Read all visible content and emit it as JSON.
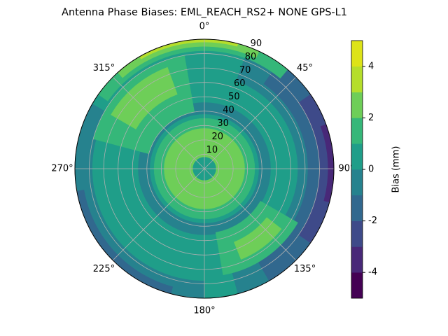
{
  "chart_data": {
    "type": "polar_contour",
    "title": "Antenna Phase Biases: EML_REACH_RS2+  NONE GPS-L1",
    "colorbar_label": "Bias (mm)",
    "rlim": [
      0,
      90
    ],
    "rticks": [
      10,
      20,
      30,
      40,
      50,
      60,
      70,
      80,
      90
    ],
    "thetaticks": [
      {
        "value": 0,
        "label": "0°"
      },
      {
        "value": 45,
        "label": "45°"
      },
      {
        "value": 90,
        "label": "90°"
      },
      {
        "value": 135,
        "label": "135°"
      },
      {
        "value": 180,
        "label": "180°"
      },
      {
        "value": 225,
        "label": "225°"
      },
      {
        "value": 270,
        "label": "270°"
      },
      {
        "value": 315,
        "label": "315°"
      }
    ],
    "grid": true,
    "clim": [
      -5,
      5
    ],
    "cticks": [
      -4,
      -2,
      0,
      2,
      4
    ],
    "levels": [
      -5,
      -4,
      -3,
      -2,
      -1,
      0,
      1,
      2,
      3,
      4,
      5
    ],
    "colors": [
      "#440154",
      "#482878",
      "#3e4a89",
      "#31688e",
      "#26828e",
      "#1f9e89",
      "#35b779",
      "#6ece58",
      "#b5de2b",
      "#dde318"
    ],
    "regions": [
      {
        "range": [
          0,
          1
        ],
        "zen": [
          0,
          90
        ],
        "az": [
          0,
          360
        ]
      },
      {
        "range": [
          -1,
          0
        ],
        "zen": [
          38,
          46
        ],
        "az": [
          0,
          360
        ]
      },
      {
        "range": [
          -1,
          0
        ],
        "zen": [
          78,
          90
        ],
        "az": [
          180,
          300
        ]
      },
      {
        "range": [
          -2,
          -1
        ],
        "zen": [
          85,
          90
        ],
        "az": [
          195,
          260
        ]
      },
      {
        "range": [
          -1,
          0
        ],
        "zen": [
          65,
          90
        ],
        "az": [
          20,
          165
        ]
      },
      {
        "range": [
          -2,
          -1
        ],
        "zen": [
          72,
          90
        ],
        "az": [
          35,
          150
        ]
      },
      {
        "range": [
          -3,
          -2
        ],
        "zen": [
          80,
          90
        ],
        "az": [
          55,
          125
        ]
      },
      {
        "range": [
          -4,
          -3
        ],
        "zen": [
          86,
          90
        ],
        "az": [
          70,
          105
        ]
      },
      {
        "range": [
          1,
          2
        ],
        "zen": [
          40,
          80
        ],
        "az": [
          285,
          350
        ]
      },
      {
        "range": [
          2,
          3
        ],
        "zen": [
          55,
          75
        ],
        "az": [
          300,
          340
        ]
      },
      {
        "range": [
          1,
          2
        ],
        "zen": [
          82,
          90
        ],
        "az": [
          305,
          400
        ]
      },
      {
        "range": [
          2,
          3
        ],
        "zen": [
          85,
          90
        ],
        "az": [
          318,
          385
        ]
      },
      {
        "range": [
          3,
          4
        ],
        "zen": [
          88,
          90
        ],
        "az": [
          330,
          375
        ]
      },
      {
        "range": [
          1,
          2
        ],
        "zen": [
          45,
          75
        ],
        "az": [
          120,
          170
        ]
      },
      {
        "range": [
          2,
          3
        ],
        "zen": [
          55,
          68
        ],
        "az": [
          128,
          158
        ]
      },
      {
        "range": [
          1,
          2
        ],
        "zen": [
          0,
          35
        ],
        "az": [
          0,
          360
        ]
      },
      {
        "range": [
          2,
          3
        ],
        "zen": [
          8,
          28
        ],
        "az": [
          0,
          360
        ]
      },
      {
        "range": [
          0,
          1
        ],
        "zen": [
          0,
          8
        ],
        "az": [
          0,
          360
        ]
      }
    ]
  }
}
